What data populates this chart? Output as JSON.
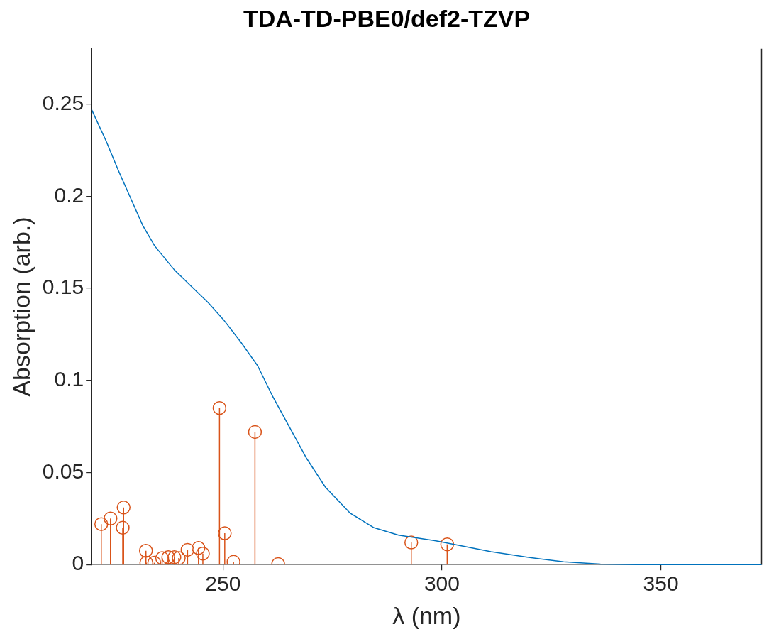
{
  "chart_data": {
    "type": "line",
    "title": "TDA-TD-PBE0/def2-TZVP",
    "xlabel": "λ (nm)",
    "ylabel": "Absorption (arb.)",
    "xlim": [
      220,
      373
    ],
    "xticks": [
      250,
      300,
      350
    ],
    "ylim": [
      0,
      0.28
    ],
    "yticks": [
      0,
      0.05,
      0.1,
      0.15,
      0.2,
      0.25
    ],
    "grid": false,
    "legend": false,
    "series": [
      {
        "color": "#0072bd",
        "marker": "none",
        "x": [
          220,
          223.3,
          226.1,
          228.9,
          231.7,
          234.4,
          238.9,
          242.8,
          246.7,
          250.1,
          254,
          257.9,
          261.2,
          265.1,
          269,
          273.4,
          279,
          284.5,
          290.1,
          298.4,
          302.8,
          311.2,
          319.5,
          327.8,
          336.2,
          344.5,
          373
        ],
        "values": [
          0.247,
          0.23,
          0.214,
          0.199,
          0.184,
          0.173,
          0.16,
          0.151,
          0.142,
          0.133,
          0.121,
          0.108,
          0.092,
          0.075,
          0.058,
          0.042,
          0.028,
          0.02,
          0.016,
          0.013,
          0.011,
          0.007,
          0.004,
          0.0015,
          0.0003,
          0,
          0
        ]
      },
      {
        "type": "lollipop",
        "color": "#d95319",
        "marker": "circle",
        "x": [
          222.2,
          224.3,
          227.3,
          227.1,
          232.4,
          232.5,
          234.3,
          236.1,
          237.5,
          238.9,
          239.9,
          241.9,
          244.4,
          245.4,
          249.2,
          250.4,
          252.4,
          257.3,
          262.6,
          293,
          301.2
        ],
        "values": [
          0.022,
          0.025,
          0.031,
          0.02,
          0.0075,
          0.001,
          0.001,
          0.0035,
          0.004,
          0.004,
          0.0035,
          0.008,
          0.009,
          0.006,
          0.085,
          0.017,
          0.0015,
          0.072,
          0.0003,
          0.012,
          0.011
        ]
      }
    ]
  }
}
